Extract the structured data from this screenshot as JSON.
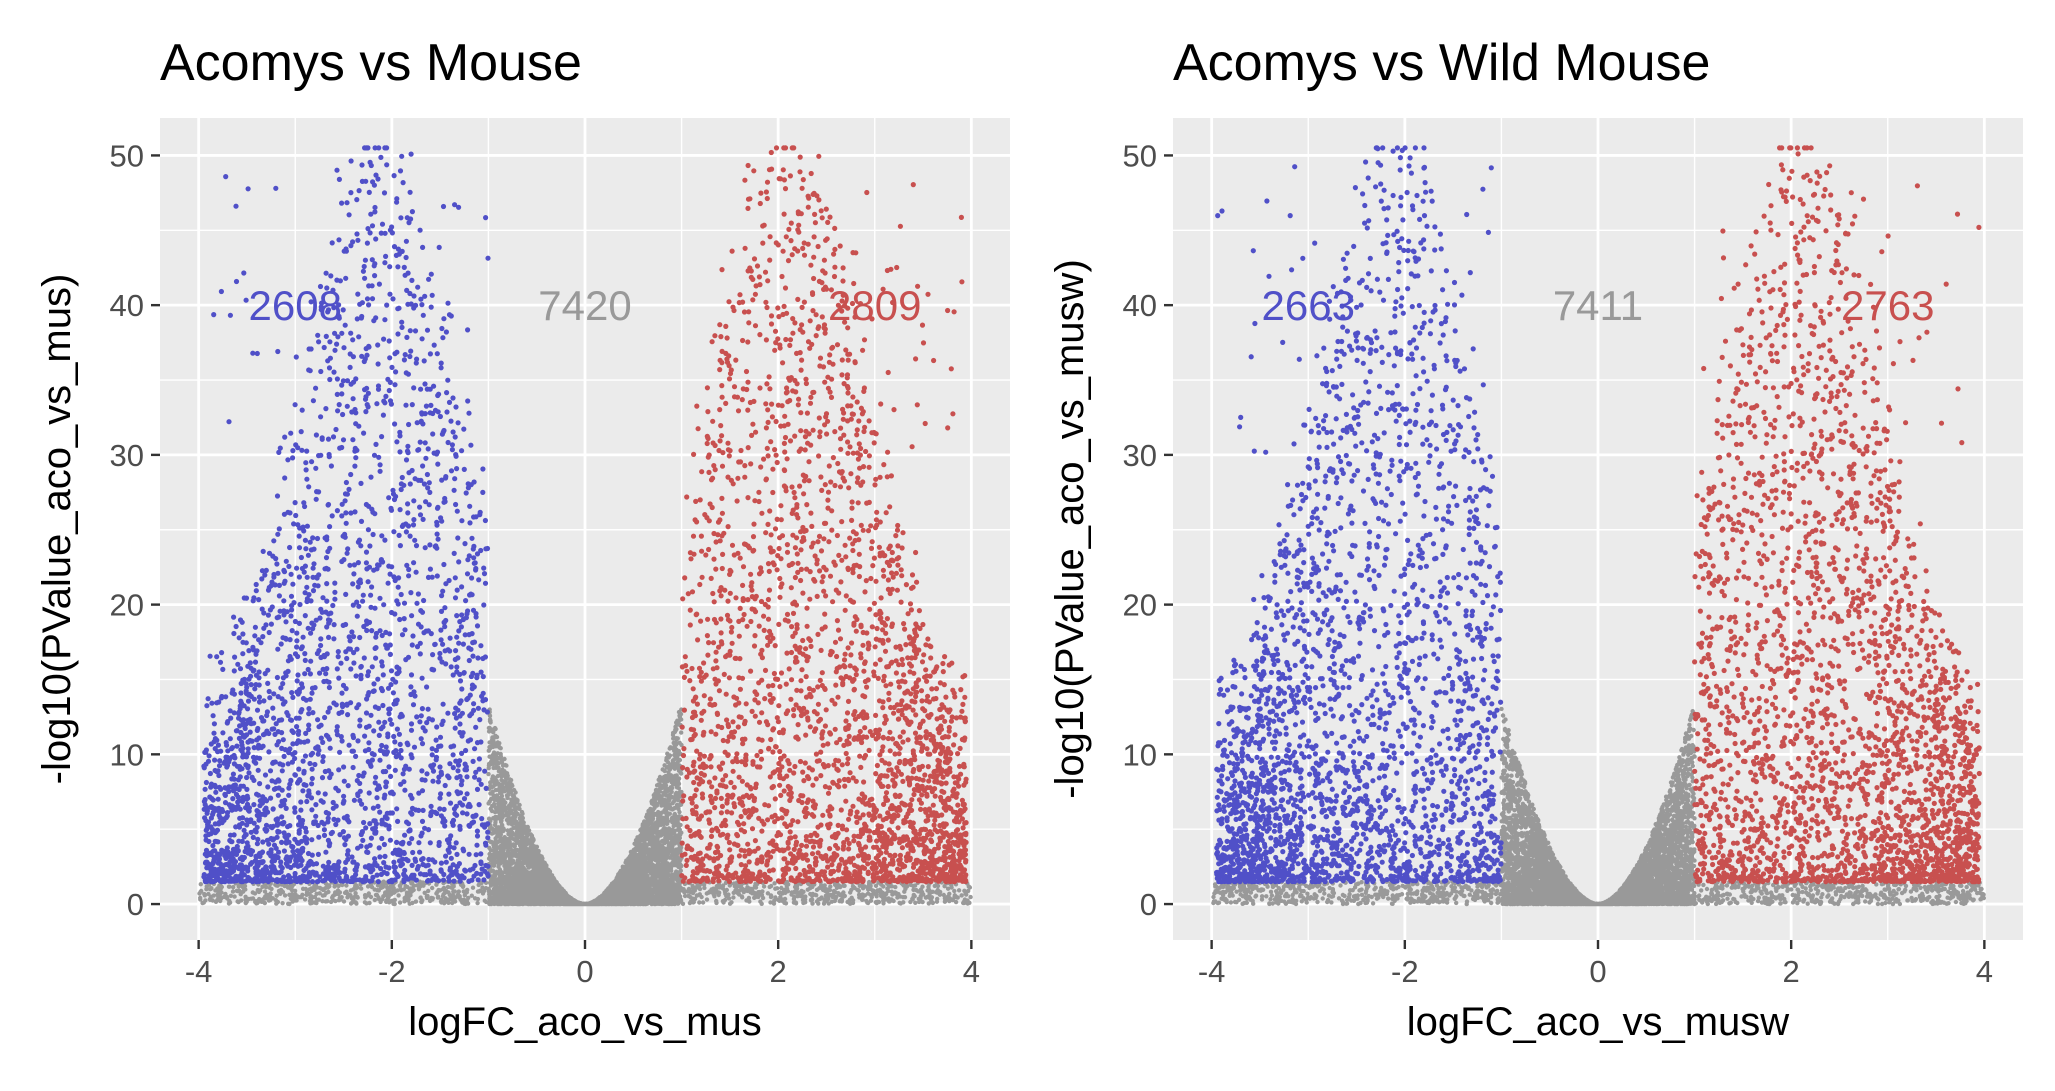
{
  "colors": {
    "panel_bg": "#ebebeb",
    "grid": "#ffffff",
    "down": "#5050c8",
    "up": "#c8504f",
    "ns": "#999999",
    "tick_text": "#4d4d4d",
    "tick_mark": "#333333"
  },
  "chart_data": [
    {
      "type": "scatter",
      "subtype": "volcano",
      "title": "Acomys vs Mouse",
      "xlabel": "logFC_aco_vs_mus",
      "ylabel": "-log10(PValue_aco_vs_mus)",
      "xlim": [
        -4.4,
        4.4
      ],
      "ylim": [
        -2.4,
        52.5
      ],
      "xticks": [
        -4,
        -2,
        0,
        2,
        4
      ],
      "xtick_labels": [
        "-4",
        "-2",
        "0",
        "2",
        "4"
      ],
      "yticks": [
        0,
        10,
        20,
        30,
        40,
        50
      ],
      "ytick_labels": [
        "0",
        "10",
        "20",
        "30",
        "40",
        "50"
      ],
      "grid": true,
      "thresholds": {
        "logFC": 1,
        "min_neg_log10_p_significant": 1.5
      },
      "groups": [
        {
          "key": "down",
          "count": 2608,
          "color": "#5050c8"
        },
        {
          "key": "ns",
          "count": 7420,
          "color": "#999999"
        },
        {
          "key": "up",
          "count": 2809,
          "color": "#c8504f"
        }
      ],
      "annotations": [
        {
          "text": "2608",
          "x": -3.0,
          "y": 40,
          "color": "#5050c8"
        },
        {
          "text": "7420",
          "x": 0.0,
          "y": 40,
          "color": "#999999"
        },
        {
          "text": "2809",
          "x": 3.0,
          "y": 40,
          "color": "#c8504f"
        }
      ]
    },
    {
      "type": "scatter",
      "subtype": "volcano",
      "title": "Acomys vs Wild Mouse",
      "xlabel": "logFC_aco_vs_musw",
      "ylabel": "-log10(PValue_aco_vs_musw)",
      "xlim": [
        -4.4,
        4.4
      ],
      "ylim": [
        -2.4,
        52.5
      ],
      "xticks": [
        -4,
        -2,
        0,
        2,
        4
      ],
      "xtick_labels": [
        "-4",
        "-2",
        "0",
        "2",
        "4"
      ],
      "yticks": [
        0,
        10,
        20,
        30,
        40,
        50
      ],
      "ytick_labels": [
        "0",
        "10",
        "20",
        "30",
        "40",
        "50"
      ],
      "grid": true,
      "thresholds": {
        "logFC": 1,
        "min_neg_log10_p_significant": 1.5
      },
      "groups": [
        {
          "key": "down",
          "count": 2663,
          "color": "#5050c8"
        },
        {
          "key": "ns",
          "count": 7411,
          "color": "#999999"
        },
        {
          "key": "up",
          "count": 2763,
          "color": "#c8504f"
        }
      ],
      "annotations": [
        {
          "text": "2663",
          "x": -3.0,
          "y": 40,
          "color": "#5050c8"
        },
        {
          "text": "7411",
          "x": 0.0,
          "y": 40,
          "color": "#999999"
        },
        {
          "text": "2763",
          "x": 3.0,
          "y": 40,
          "color": "#c8504f"
        }
      ]
    }
  ]
}
